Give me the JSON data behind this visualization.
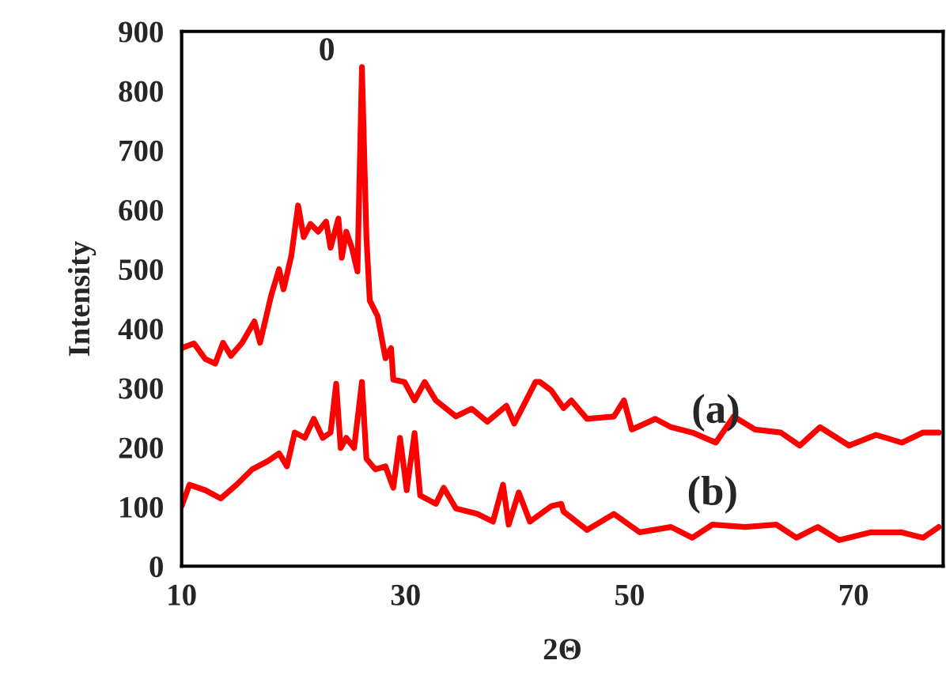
{
  "chart_data": {
    "type": "line",
    "xlabel": "2Θ",
    "ylabel": "Intensity",
    "xlim": [
      10,
      78
    ],
    "xticks": [
      10,
      30,
      50,
      70
    ],
    "ylim": [
      0,
      900
    ],
    "yticks": [
      0,
      100,
      200,
      300,
      400,
      500,
      600,
      700,
      800,
      900
    ],
    "grid": false,
    "legend": false,
    "marker": "none",
    "line_style": "solid",
    "annotations": [
      {
        "text": "0",
        "x": 26.1,
        "y": 840
      }
    ],
    "series": [
      {
        "name": "(a)",
        "color": "#ff0000",
        "x": [
          10,
          11.1,
          12.1,
          13.0,
          13.7,
          14.4,
          15.4,
          16.5,
          17.0,
          18.0,
          18.7,
          19.1,
          19.8,
          20.4,
          20.9,
          21.5,
          22.2,
          22.9,
          23.3,
          24.0,
          24.3,
          24.7,
          25.2,
          25.7,
          26.1,
          26.5,
          26.8,
          27.5,
          28.2,
          28.7,
          28.9,
          29.9,
          30.8,
          31.7,
          32.7,
          34.5,
          35.9,
          37.3,
          39.0,
          39.7,
          41.6,
          42.0,
          43.0,
          44.1,
          44.8,
          46.2,
          48.6,
          49.5,
          50.2,
          52.3,
          53.7,
          55.6,
          57.7,
          59.3,
          61.2,
          63.5,
          65.2,
          67.0,
          69.6,
          72.0,
          74.3,
          76.2,
          77.6
        ],
        "values": [
          367,
          375,
          349,
          341,
          376,
          354,
          376,
          412,
          376,
          456,
          500,
          466,
          523,
          607,
          554,
          576,
          563,
          580,
          536,
          585,
          519,
          563,
          536,
          496,
          840,
          554,
          447,
          421,
          350,
          367,
          314,
          310,
          279,
          310,
          279,
          252,
          265,
          243,
          270,
          240,
          310,
          310,
          296,
          266,
          279,
          248,
          252,
          279,
          230,
          248,
          234,
          225,
          208,
          252,
          230,
          225,
          203,
          234,
          203,
          221,
          208,
          225,
          225
        ]
      },
      {
        "name": "(b)",
        "color": "#ff0000",
        "x": [
          10,
          10.7,
          12.1,
          13.5,
          14.9,
          16.3,
          17.7,
          18.7,
          19.4,
          20.1,
          21.0,
          21.8,
          22.6,
          23.3,
          23.8,
          24.2,
          24.7,
          25.4,
          26.1,
          26.5,
          27.3,
          28.2,
          28.9,
          29.5,
          30.1,
          30.8,
          31.3,
          32.7,
          33.4,
          34.5,
          36.4,
          37.8,
          38.7,
          39.2,
          40.1,
          41.1,
          43.0,
          43.9,
          44.1,
          46.2,
          48.6,
          50.9,
          53.7,
          55.6,
          57.4,
          60.3,
          63.1,
          64.9,
          66.8,
          68.7,
          71.5,
          74.3,
          76.2,
          77.6
        ],
        "values": [
          101,
          137,
          128,
          114,
          137,
          163,
          177,
          190,
          168,
          225,
          216,
          248,
          216,
          225,
          307,
          199,
          216,
          199,
          310,
          181,
          163,
          168,
          132,
          216,
          128,
          224,
          119,
          105,
          132,
          97,
          88,
          75,
          137,
          70,
          124,
          75,
          101,
          105,
          92,
          61,
          88,
          57,
          66,
          48,
          70,
          66,
          70,
          48,
          66,
          44,
          57,
          57,
          48,
          66
        ]
      }
    ]
  }
}
